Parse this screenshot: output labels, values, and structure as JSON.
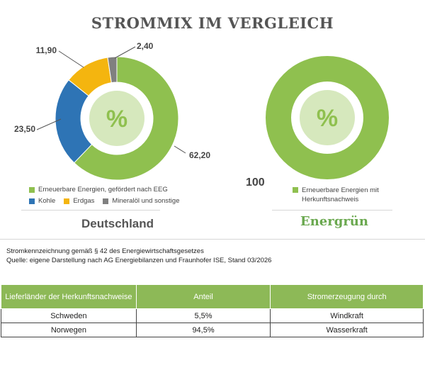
{
  "title": "STROMMIX IM VERGLEICH",
  "center_symbol": "%",
  "chart_data": [
    {
      "type": "pie",
      "variant": "donut",
      "caption": "Deutschland",
      "slices": [
        {
          "label": "Erneuerbare Energien, gefördert nach EEG",
          "value": 62.2,
          "display": "62,20",
          "color": "#8fc04f"
        },
        {
          "label": "Kohle",
          "value": 23.5,
          "display": "23,50",
          "color": "#2e74b5"
        },
        {
          "label": "Erdgas",
          "value": 11.9,
          "display": "11,90",
          "color": "#f4b50f"
        },
        {
          "label": "Mineralöl und sonstige",
          "value": 2.4,
          "display": "2,40",
          "color": "#808080"
        }
      ]
    },
    {
      "type": "pie",
      "variant": "donut",
      "caption": "Energrün",
      "slices": [
        {
          "label": "Erneuerbare Energien mit Herkunftsnachweis",
          "label_lines": [
            "Erneuerbare Energien mit",
            "Herkunftsnachweis"
          ],
          "value": 100,
          "display": "100",
          "color": "#8fc04f"
        }
      ]
    }
  ],
  "colors": {
    "center_fill": "#d6e8bd",
    "center_text": "#8fc04f",
    "header_green": "#8db957"
  },
  "notes": [
    "Stromkennzeichnung gemäß § 42 des Energiewirtschaftsgesetzes",
    "Quelle: eigene Darstellung nach AG Energiebilanzen und Fraunhofer ISE, Stand 03/2026"
  ],
  "table": {
    "headers": [
      "Lieferländer der Herkunftsnachweise",
      "Anteil",
      "Stromerzeugung durch"
    ],
    "rows": [
      [
        "Schweden",
        "5,5%",
        "Windkraft"
      ],
      [
        "Norwegen",
        "94,5%",
        "Wasserkraft"
      ]
    ]
  }
}
